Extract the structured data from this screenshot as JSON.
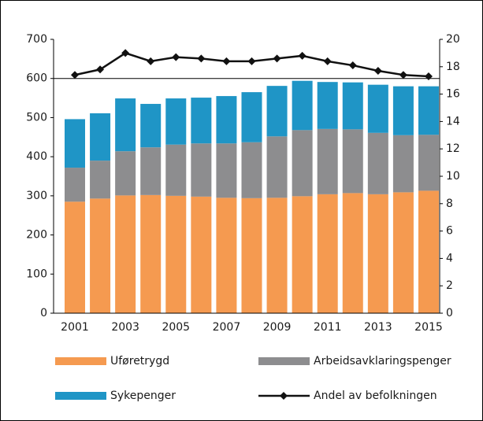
{
  "chart_data": {
    "type": "bar",
    "categories": [
      "2001",
      null,
      "2003",
      null,
      "2005",
      null,
      "2007",
      null,
      "2009",
      null,
      "2011",
      null,
      "2013",
      null,
      "2015"
    ],
    "series": [
      {
        "name": "Uføretrygd",
        "color": "#f59a50",
        "values": [
          285,
          293,
          301,
          302,
          300,
          298,
          295,
          294,
          295,
          299,
          304,
          307,
          304,
          309,
          313
        ]
      },
      {
        "name": "Arbeidsavklaringspenger",
        "color": "#8d8d8f",
        "values": [
          87,
          97,
          113,
          122,
          131,
          136,
          139,
          143,
          157,
          169,
          167,
          163,
          157,
          146,
          143
        ]
      },
      {
        "name": "Sykepenger",
        "color": "#1f95c6",
        "values": [
          124,
          121,
          135,
          111,
          118,
          117,
          121,
          128,
          129,
          126,
          120,
          120,
          123,
          125,
          124
        ]
      },
      {
        "name": "Andel av befolkningen",
        "color": "#111111",
        "type": "line",
        "axis": "y2",
        "values": [
          17.4,
          17.8,
          19.0,
          18.4,
          18.7,
          18.6,
          18.4,
          18.4,
          18.6,
          18.8,
          18.4,
          18.1,
          17.7,
          17.4,
          17.3
        ]
      }
    ],
    "ylim": [
      0,
      700
    ],
    "yticks": [
      0,
      100,
      200,
      300,
      400,
      500,
      600,
      700
    ],
    "y2lim": [
      0,
      20
    ],
    "y2ticks": [
      0,
      2,
      4,
      6,
      8,
      10,
      12,
      14,
      16,
      18,
      20
    ]
  }
}
